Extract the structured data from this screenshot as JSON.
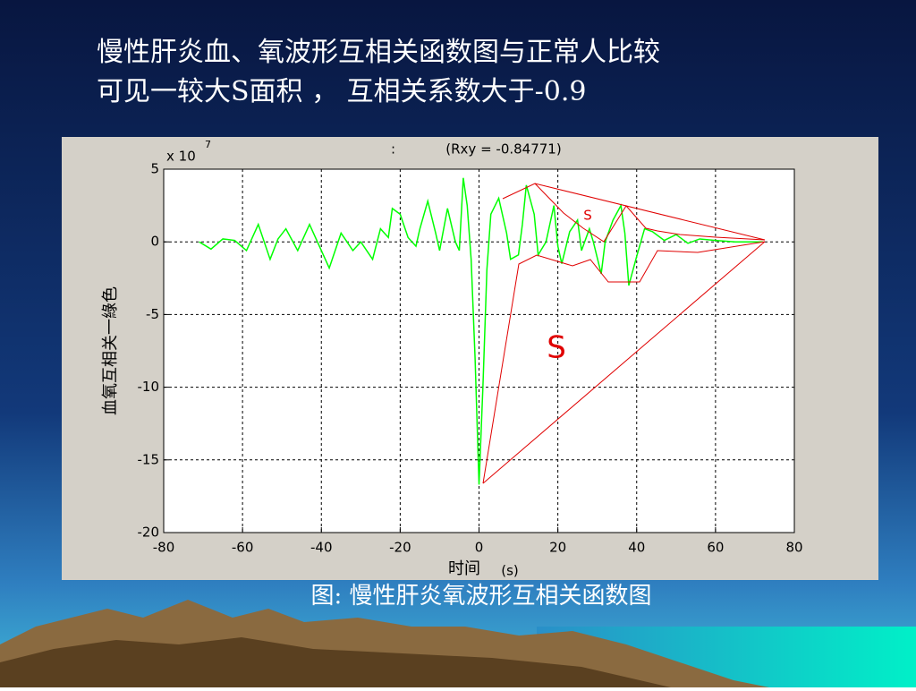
{
  "title_lines": [
    "慢性肝炎血、氧波形互相关函数图与正常人比较",
    "可见一较大S面积 ，  互相关系数大于-0.9"
  ],
  "chart_data": {
    "type": "line",
    "title_marker": ":",
    "title": "(Rxy = -0.84771)",
    "y_scale_label": {
      "base": "x 10",
      "exponent": "7"
    },
    "ylabel": "血氧互相关一綠色",
    "xlabel": "时间",
    "xlabel_unit": "(s)",
    "x": [
      -71,
      -68,
      -65,
      -62,
      -59,
      -56,
      -53,
      -51,
      -49,
      -46,
      -43,
      -41,
      -38,
      -35,
      -32,
      -30,
      -27,
      -25,
      -23,
      -22,
      -20,
      -18,
      -16,
      -15,
      -13,
      -11,
      -10,
      -8,
      -6,
      -5,
      -4,
      -3,
      -2,
      -1,
      0,
      1,
      2,
      3,
      5,
      7,
      8,
      10,
      11,
      12,
      14,
      15,
      17,
      19,
      20,
      21,
      23,
      25,
      26,
      28,
      29,
      31,
      32,
      34,
      36,
      37,
      38,
      40,
      42,
      44,
      47,
      50,
      53,
      56,
      60,
      65,
      72
    ],
    "series": [
      {
        "color": "#00ff00",
        "values": [
          0,
          -0.5,
          0.2,
          0.1,
          -0.6,
          1.2,
          -1.2,
          0.2,
          0.9,
          -0.6,
          1.2,
          0,
          -1.8,
          0.6,
          -0.6,
          0,
          -1.2,
          0.9,
          0.3,
          2.3,
          1.9,
          0.3,
          -0.3,
          0.9,
          2.8,
          0.6,
          -0.6,
          2.3,
          0,
          -0.6,
          4.4,
          2.5,
          -1.2,
          -8,
          -16.7,
          -9.9,
          -1.9,
          1.9,
          3,
          0.6,
          -1.2,
          -0.9,
          1.2,
          3.9,
          1.9,
          -0.9,
          0,
          2.5,
          -0.3,
          -1.5,
          0.7,
          1.5,
          -0.6,
          0.9,
          0,
          -2.2,
          0,
          1.5,
          2.5,
          0.6,
          -3,
          -1,
          0.9,
          0.7,
          0.1,
          0.5,
          -0.1,
          0.2,
          0.1,
          0,
          0
        ]
      }
    ],
    "xlim": [
      -80,
      80
    ],
    "xticks": [
      -80,
      -60,
      -40,
      -20,
      0,
      20,
      40,
      60,
      80
    ],
    "ylim": [
      -20,
      5
    ],
    "yticks": [
      5,
      0,
      -5,
      -10,
      -15,
      -20
    ],
    "grid": true,
    "annotations": [
      "S",
      "S"
    ]
  },
  "caption": "图: 慢性肝炎氧波形互相关函数图"
}
